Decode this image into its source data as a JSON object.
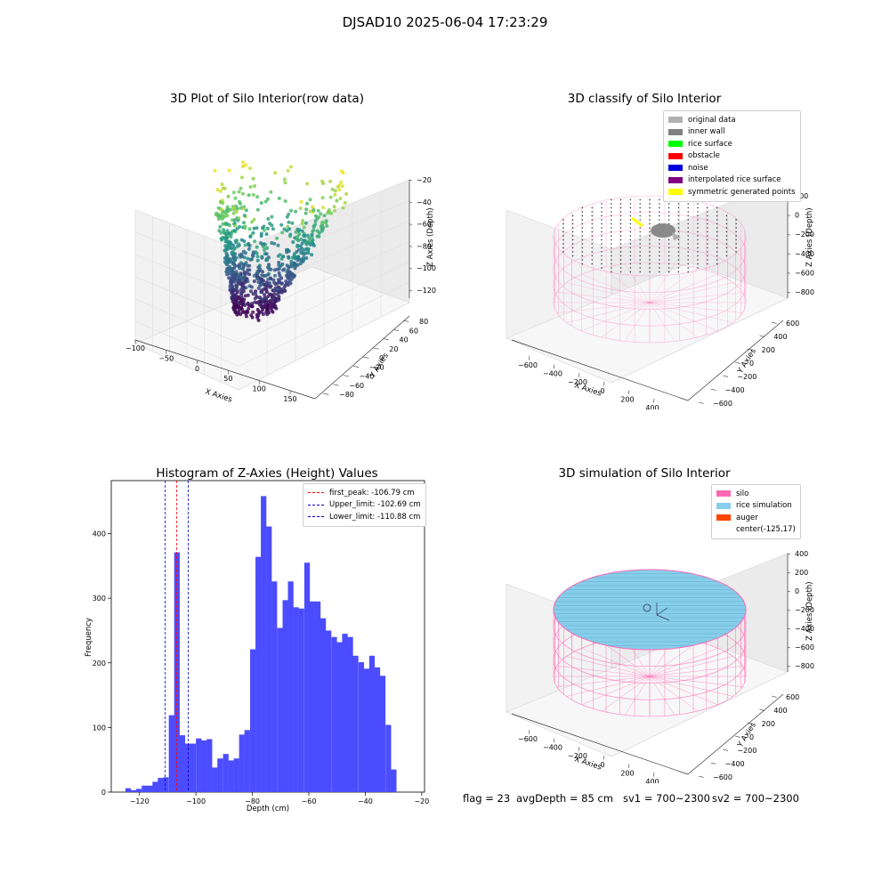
{
  "figure": {
    "suptitle": "DJSAD10 2025-06-04 17:23:29",
    "status": {
      "flag": "flag = 23",
      "avg_depth": "avgDepth = 85 cm",
      "sv1": "sv1 = 700~2300",
      "sv2": "sv2 = 700~2300"
    }
  },
  "colors": {
    "hist_bar": "#4c4cff",
    "peak_line": "#ff0000",
    "limit_line": "#0000cc",
    "silo_wire": "#ff69b4",
    "rice_fill": "#87ceeb"
  },
  "chart_data": [
    {
      "type": "scatter",
      "subtype": "3d-scatter",
      "title": "3D Plot of Silo Interior(row data)",
      "xlabel": "X Axies",
      "ylabel": "Y Axies",
      "zlabel": "Z Axies (Depth)",
      "x_ticks": [
        "−100",
        "−50",
        "0",
        "50",
        "100",
        "150"
      ],
      "y_ticks": [
        "−80",
        "−60",
        "−40",
        "−20",
        "0",
        "20",
        "40",
        "60",
        "80"
      ],
      "z_ticks": [
        "−20",
        "−40",
        "−60",
        "−80",
        "−100",
        "−120"
      ],
      "xlim": [
        -100,
        175
      ],
      "ylim": [
        -80,
        80
      ],
      "zlim": [
        -130,
        -20
      ],
      "colormap": "viridis"
    },
    {
      "type": "scatter",
      "subtype": "3d-classification",
      "title": "3D classify of Silo Interior",
      "xlabel": "X Axies",
      "ylabel": "Y Axies",
      "zlabel": "Z Axies (Depth)",
      "x_ticks": [
        "−600",
        "−400",
        "−200",
        "0",
        "200",
        "400"
      ],
      "y_ticks": [
        "−600",
        "−400",
        "−200",
        "0",
        "200",
        "400",
        "600"
      ],
      "z_ticks": [
        "200",
        "0",
        "−200",
        "−400",
        "−600",
        "−800"
      ],
      "legend_position": "upper-right",
      "legend": [
        {
          "label": "original data",
          "color": "#b0b0b0"
        },
        {
          "label": "inner wall",
          "color": "#808080"
        },
        {
          "label": "rice surface",
          "color": "#00ff00"
        },
        {
          "label": "obstacle",
          "color": "#ff0000"
        },
        {
          "label": "noise",
          "color": "#0000dd"
        },
        {
          "label": "interpolated rice surface",
          "color": "#800080"
        },
        {
          "label": "symmetric generated points",
          "color": "#ffff00"
        }
      ]
    },
    {
      "type": "bar",
      "subtype": "histogram",
      "title": "Histogram of Z-Axies (Height) Values",
      "xlabel": "Depth (cm)",
      "ylabel": "Frequency",
      "xlim": [
        -130,
        -19
      ],
      "ylim": [
        0,
        482
      ],
      "x_ticks": [
        -120,
        -100,
        -80,
        -60,
        -40,
        -20
      ],
      "y_ticks": [
        0,
        100,
        200,
        300,
        400
      ],
      "bin_width": 1.92,
      "bins": [
        {
          "start": -125.0,
          "value": 6
        },
        {
          "start": -123.1,
          "value": 3
        },
        {
          "start": -121.2,
          "value": 5
        },
        {
          "start": -119.2,
          "value": 10
        },
        {
          "start": -117.3,
          "value": 10
        },
        {
          "start": -115.4,
          "value": 16
        },
        {
          "start": -113.5,
          "value": 22
        },
        {
          "start": -111.6,
          "value": 23
        },
        {
          "start": -109.6,
          "value": 119
        },
        {
          "start": -107.7,
          "value": 371
        },
        {
          "start": -105.8,
          "value": 88
        },
        {
          "start": -103.9,
          "value": 75
        },
        {
          "start": -102.0,
          "value": 75
        },
        {
          "start": -100.0,
          "value": 83
        },
        {
          "start": -98.1,
          "value": 80
        },
        {
          "start": -96.2,
          "value": 82
        },
        {
          "start": -94.3,
          "value": 38
        },
        {
          "start": -92.4,
          "value": 52
        },
        {
          "start": -90.4,
          "value": 59
        },
        {
          "start": -88.5,
          "value": 49
        },
        {
          "start": -86.6,
          "value": 52
        },
        {
          "start": -84.7,
          "value": 89
        },
        {
          "start": -82.8,
          "value": 96
        },
        {
          "start": -80.8,
          "value": 221
        },
        {
          "start": -78.9,
          "value": 364
        },
        {
          "start": -77.0,
          "value": 458
        },
        {
          "start": -75.1,
          "value": 411
        },
        {
          "start": -73.2,
          "value": 326
        },
        {
          "start": -71.2,
          "value": 254
        },
        {
          "start": -69.3,
          "value": 297
        },
        {
          "start": -67.4,
          "value": 326
        },
        {
          "start": -65.5,
          "value": 286
        },
        {
          "start": -63.6,
          "value": 284
        },
        {
          "start": -61.6,
          "value": 355
        },
        {
          "start": -59.7,
          "value": 295
        },
        {
          "start": -57.8,
          "value": 295
        },
        {
          "start": -55.9,
          "value": 269
        },
        {
          "start": -54.0,
          "value": 250
        },
        {
          "start": -52.0,
          "value": 240
        },
        {
          "start": -50.1,
          "value": 232
        },
        {
          "start": -48.2,
          "value": 245
        },
        {
          "start": -46.3,
          "value": 240
        },
        {
          "start": -44.4,
          "value": 211
        },
        {
          "start": -42.4,
          "value": 201
        },
        {
          "start": -40.5,
          "value": 191
        },
        {
          "start": -38.6,
          "value": 211
        },
        {
          "start": -36.7,
          "value": 193
        },
        {
          "start": -34.8,
          "value": 180
        },
        {
          "start": -32.8,
          "value": 104
        },
        {
          "start": -30.9,
          "value": 35
        }
      ],
      "reference_lines": [
        {
          "label": "first_peak: -106.79 cm",
          "x": -106.79,
          "color": "#ff0000"
        },
        {
          "label": "Upper_limit: -102.69 cm",
          "x": -102.69,
          "color": "#0000cc"
        },
        {
          "label": "Lower_limit: -110.88 cm",
          "x": -110.88,
          "color": "#0000cc"
        }
      ],
      "legend_position": "upper-right"
    },
    {
      "type": "scatter",
      "subtype": "3d-simulation",
      "title": "3D simulation of Silo Interior",
      "xlabel": "X Axies",
      "ylabel": "Y Axies",
      "zlabel": "Z Axies (Depth)",
      "x_ticks": [
        "−600",
        "−400",
        "−200",
        "0",
        "200",
        "400"
      ],
      "y_ticks": [
        "−600",
        "−400",
        "−200",
        "0",
        "200",
        "400",
        "600"
      ],
      "z_ticks": [
        "400",
        "200",
        "0",
        "−200",
        "−400",
        "−600",
        "−800"
      ],
      "legend_position": "upper-right",
      "legend": [
        {
          "label": "silo",
          "color": "#ff69b4"
        },
        {
          "label": "rice simulation",
          "color": "#87ceeb"
        },
        {
          "label": "auger",
          "color": "#ff4500"
        },
        {
          "label": "center(-125,17)",
          "color": ""
        }
      ]
    }
  ]
}
